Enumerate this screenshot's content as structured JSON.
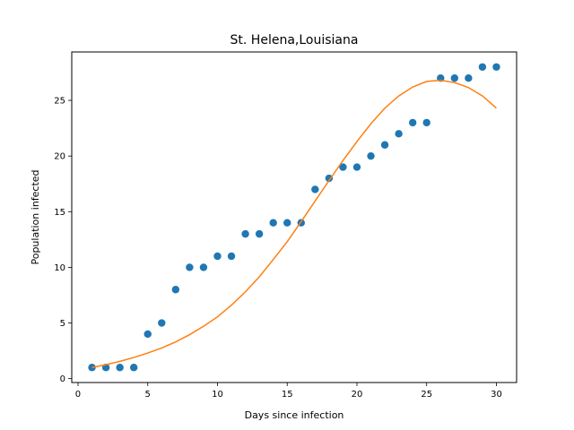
{
  "chart_data": {
    "type": "scatter",
    "title": "St. Helena,Louisiana",
    "xlabel": "Days since infection",
    "ylabel": "Population infected",
    "xlim": [
      -0.45,
      31.45
    ],
    "ylim": [
      -0.35,
      29.35
    ],
    "x_ticks": [
      0,
      5,
      10,
      15,
      20,
      25,
      30
    ],
    "y_ticks": [
      0,
      5,
      10,
      15,
      20,
      25
    ],
    "grid": false,
    "series": [
      {
        "kind": "scatter",
        "color": "#1f77b4",
        "x": [
          1,
          2,
          3,
          4,
          5,
          6,
          7,
          8,
          9,
          10,
          11,
          12,
          13,
          14,
          15,
          16,
          17,
          18,
          19,
          20,
          21,
          22,
          23,
          24,
          25,
          26,
          27,
          28,
          29,
          30
        ],
        "y": [
          1,
          1,
          1,
          1,
          4,
          5,
          8,
          10,
          10,
          11,
          11,
          13,
          13,
          14,
          14,
          14,
          17,
          18,
          19,
          19,
          20,
          21,
          22,
          23,
          23,
          27,
          27,
          27,
          28,
          28
        ]
      },
      {
        "kind": "line",
        "color": "#ff7f0e",
        "x": [
          1,
          2,
          3,
          4,
          5,
          6,
          7,
          8,
          9,
          10,
          11,
          12,
          13,
          14,
          15,
          16,
          17,
          18,
          19,
          20,
          21,
          22,
          23,
          24,
          25,
          26,
          27,
          28,
          29,
          30
        ],
        "y": [
          1.0,
          1.25,
          1.55,
          1.9,
          2.3,
          2.75,
          3.3,
          3.95,
          4.7,
          5.55,
          6.6,
          7.8,
          9.15,
          10.7,
          12.3,
          14.1,
          15.95,
          17.8,
          19.6,
          21.3,
          22.9,
          24.3,
          25.4,
          26.2,
          26.7,
          26.8,
          26.6,
          26.15,
          25.4,
          24.3
        ]
      }
    ]
  }
}
